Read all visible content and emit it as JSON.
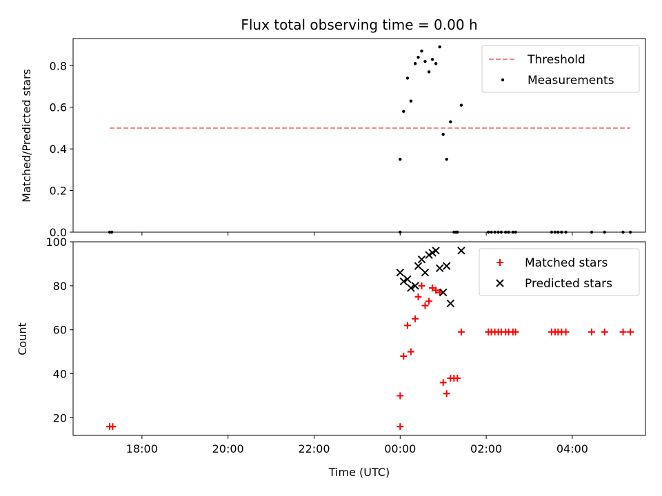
{
  "chart_data": {
    "type": "scatter",
    "title": "Flux total observing time = 0.00 h",
    "xlabel": "Time (UTC)",
    "x_unit": "hours relative to 00:00 UTC",
    "xlim": [
      -7.6,
      5.7
    ],
    "x_ticks": [
      {
        "value": -6,
        "label": "18:00"
      },
      {
        "value": -4,
        "label": "20:00"
      },
      {
        "value": -2,
        "label": "22:00"
      },
      {
        "value": 0,
        "label": "00:00"
      },
      {
        "value": 2,
        "label": "02:00"
      },
      {
        "value": 4,
        "label": "04:00"
      }
    ],
    "panels": [
      {
        "name": "ratio",
        "ylabel": "Matched/Predicted stars",
        "ylim": [
          0,
          0.93
        ],
        "y_ticks": [
          {
            "value": 0,
            "label": "0.0"
          },
          {
            "value": 0.2,
            "label": "0.2"
          },
          {
            "value": 0.4,
            "label": "0.4"
          },
          {
            "value": 0.6,
            "label": "0.6"
          },
          {
            "value": 0.8,
            "label": "0.8"
          }
        ],
        "legend": {
          "placement": "upper-right",
          "entries": [
            "Threshold",
            "Measurements"
          ]
        },
        "threshold": {
          "name": "Threshold",
          "value": 0.5,
          "x_range": [
            -6.75,
            5.35
          ],
          "color": "#f08080",
          "style": "dashed"
        },
        "series": [
          {
            "name": "Measurements",
            "marker": "dot",
            "color": "#000000",
            "x": [
              -6.75,
              -6.7,
              0.0,
              0.08,
              0.17,
              0.25,
              0.35,
              0.42,
              0.5,
              0.58,
              0.67,
              0.75,
              0.83,
              0.92,
              1.0,
              1.08,
              1.17,
              1.25,
              1.33,
              1.42,
              2.05,
              2.12,
              2.2,
              2.28,
              2.35,
              2.45,
              2.52,
              2.62,
              2.68,
              3.52,
              3.6,
              3.67,
              3.75,
              3.85,
              4.45,
              4.75,
              5.18,
              5.35,
              0.0,
              1.3
            ],
            "y": [
              0,
              0,
              0.35,
              0.58,
              0.74,
              0.63,
              0.81,
              0.84,
              0.87,
              0.82,
              0.77,
              0.83,
              0.81,
              0.89,
              0.47,
              0.35,
              0.53,
              0,
              0,
              0.61,
              0,
              0,
              0,
              0,
              0,
              0,
              0,
              0,
              0,
              0,
              0,
              0,
              0,
              0,
              0,
              0,
              0,
              0,
              0,
              0
            ]
          }
        ]
      },
      {
        "name": "counts",
        "ylabel": "Count",
        "ylim": [
          12,
          100
        ],
        "y_ticks": [
          {
            "value": 20,
            "label": "20"
          },
          {
            "value": 40,
            "label": "40"
          },
          {
            "value": 60,
            "label": "60"
          },
          {
            "value": 80,
            "label": "80"
          },
          {
            "value": 100,
            "label": "100"
          }
        ],
        "legend": {
          "placement": "upper-right",
          "entries": [
            "Matched stars",
            "Predicted stars"
          ]
        },
        "series": [
          {
            "name": "Matched stars",
            "marker": "plus",
            "color": "#ff0000",
            "x": [
              -6.75,
              -6.68,
              0.0,
              0.0,
              0.08,
              0.17,
              0.25,
              0.35,
              0.42,
              0.5,
              0.58,
              0.67,
              0.75,
              0.83,
              0.92,
              1.0,
              1.08,
              1.17,
              1.25,
              1.33,
              1.42,
              2.05,
              2.12,
              2.2,
              2.28,
              2.35,
              2.45,
              2.52,
              2.62,
              2.68,
              3.52,
              3.6,
              3.67,
              3.75,
              3.85,
              4.45,
              4.75,
              5.18,
              5.35
            ],
            "y": [
              16,
              16,
              16,
              30,
              48,
              62,
              50,
              65,
              75,
              80,
              71,
              73,
              79,
              78,
              77,
              36,
              31,
              38,
              38,
              38,
              59,
              59,
              59,
              59,
              59,
              59,
              59,
              59,
              59,
              59,
              59,
              59,
              59,
              59,
              59,
              59,
              59,
              59,
              59
            ]
          },
          {
            "name": "Predicted stars",
            "marker": "x",
            "color": "#000000",
            "x": [
              0.0,
              0.08,
              0.17,
              0.25,
              0.35,
              0.42,
              0.5,
              0.58,
              0.67,
              0.75,
              0.83,
              0.92,
              1.0,
              1.08,
              1.17,
              1.42
            ],
            "y": [
              86,
              82,
              83,
              79,
              80,
              89,
              92,
              86,
              94,
              95,
              96,
              88,
              77,
              89,
              72,
              96
            ]
          }
        ]
      }
    ]
  }
}
